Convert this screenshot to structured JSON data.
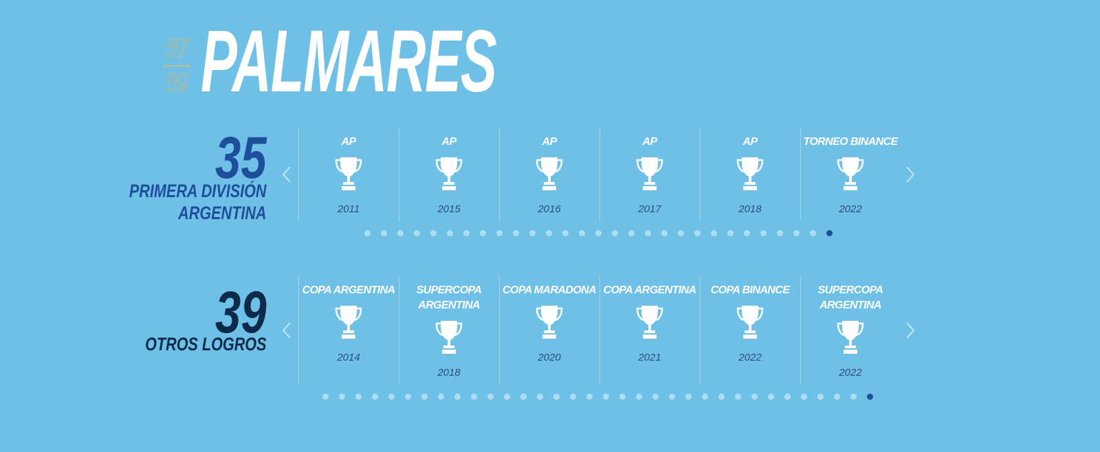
{
  "header": {
    "counter_current": "07",
    "counter_total": "09",
    "title": "PALMARES"
  },
  "sections": [
    {
      "count": 35,
      "label_lines": [
        "PRIMERA DIVISIÓN",
        "ARGENTINA"
      ],
      "items": [
        {
          "title": "AP",
          "year": "2011"
        },
        {
          "title": "AP",
          "year": "2015"
        },
        {
          "title": "AP",
          "year": "2016"
        },
        {
          "title": "AP",
          "year": "2017"
        },
        {
          "title": "AP",
          "year": "2018"
        },
        {
          "title": "TORNEO BINANCE",
          "year": "2022"
        }
      ]
    },
    {
      "count": 39,
      "label_lines": [
        "OTROS LOGROS"
      ],
      "items": [
        {
          "title": "COPA ARGENTINA",
          "year": "2014"
        },
        {
          "title": "SUPERCOPA ARGENTINA",
          "year": "2018"
        },
        {
          "title": "COPA MARADONA",
          "year": "2020"
        },
        {
          "title": "COPA ARGENTINA",
          "year": "2021"
        },
        {
          "title": "COPA BINANCE",
          "year": "2022"
        },
        {
          "title": "SUPERCOPA ARGENTINA",
          "year": "2022"
        }
      ]
    }
  ]
}
